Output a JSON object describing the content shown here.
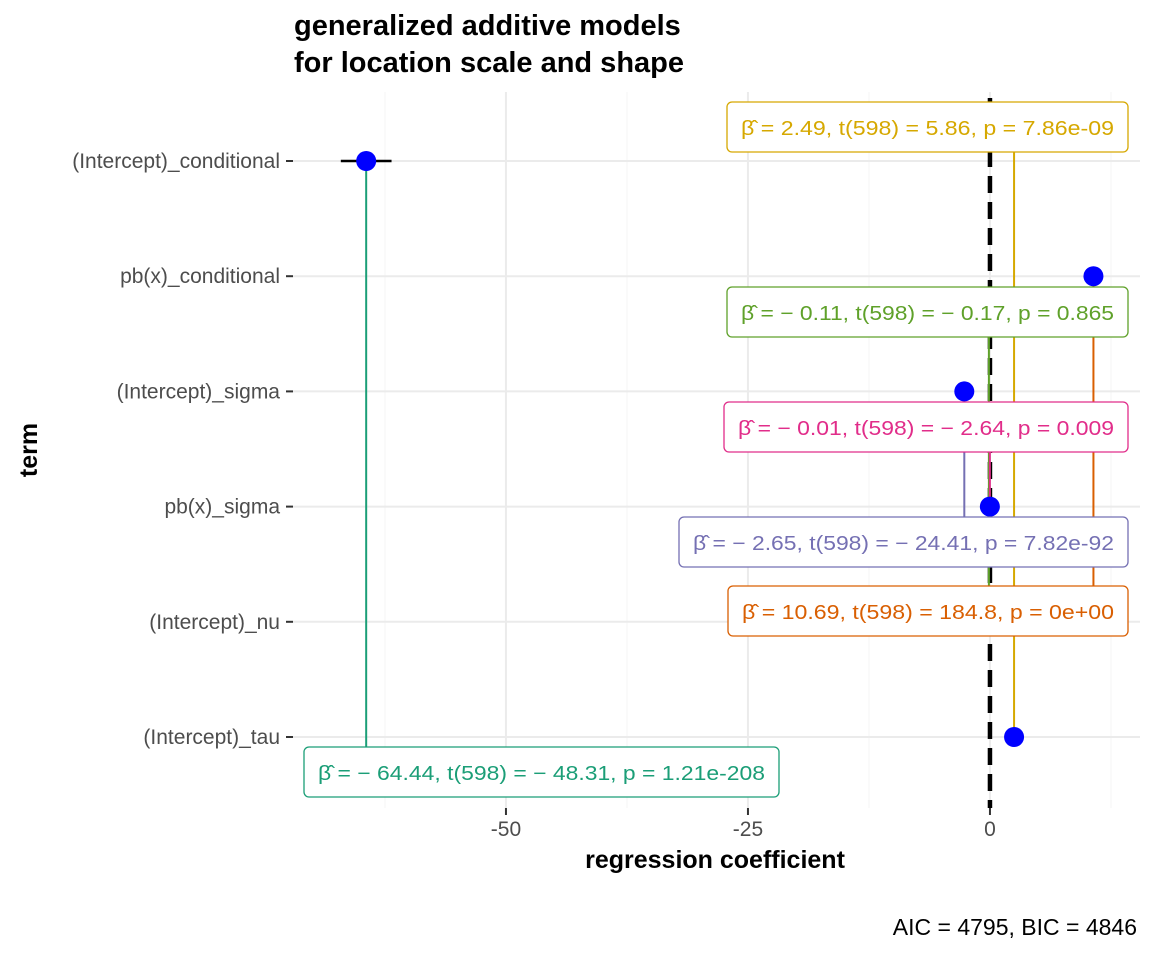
{
  "chart_data": {
    "type": "scatter",
    "title": "generalized additive models",
    "subtitle": "for location scale and shape",
    "xlabel": "regression coefficient",
    "ylabel": "term",
    "xlim": [
      -72,
      15.5
    ],
    "xticks": [
      -50,
      -25,
      0
    ],
    "xticklabels": [
      "-50",
      "-25",
      "0"
    ],
    "reference_line": 0,
    "point_color": "#0000ff",
    "grid": true,
    "caption": "AIC = 4795, BIC = 4846",
    "terms": [
      {
        "term": "(Intercept)_tau",
        "estimate": 2.49,
        "ci_low": 2.06,
        "ci_high": 2.92,
        "label": "β̂ = 2.49,  t(598) = 5.86,  p = 7.86e-09",
        "color": "#d6a800"
      },
      {
        "term": "(Intercept)_nu",
        "estimate": -0.11,
        "ci_low": -1.35,
        "ci_high": 1.13,
        "label": "β̂ = − 0.11,  t(598) = − 0.17,  p = 0.865",
        "color": "#5fa12a"
      },
      {
        "term": "pb(x)_sigma",
        "estimate": -0.01,
        "ci_low": -0.02,
        "ci_high": 0.0,
        "label": "β̂ = − 0.01,  t(598) = − 2.64,  p = 0.009",
        "color": "#e12d8a"
      },
      {
        "term": "(Intercept)_sigma",
        "estimate": -2.65,
        "ci_low": -2.86,
        "ci_high": -2.44,
        "label": "β̂ = − 2.65,  t(598) = − 24.41,  p = 7.82e-92",
        "color": "#7570b3"
      },
      {
        "term": "pb(x)_conditional",
        "estimate": 10.69,
        "ci_low": 10.58,
        "ci_high": 10.8,
        "label": "β̂ = 10.69,  t(598) = 184.8,  p = 0e+00",
        "color": "#d95f02"
      },
      {
        "term": "(Intercept)_conditional",
        "estimate": -64.44,
        "ci_low": -67.06,
        "ci_high": -61.82,
        "label": "β̂ = − 64.44,  t(598) = − 48.31,  p = 1.21e-208",
        "color": "#1b9e77"
      }
    ]
  }
}
